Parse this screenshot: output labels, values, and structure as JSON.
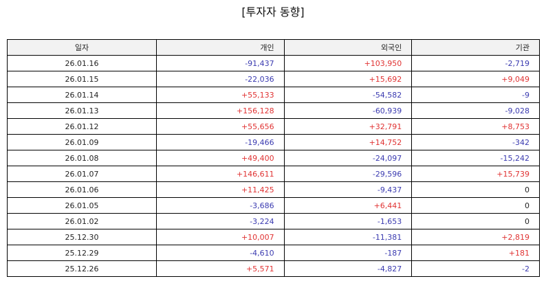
{
  "title": "[투자자 동향]",
  "colors": {
    "positive": "#e03232",
    "negative": "#3a3ab0",
    "neutral": "#222222",
    "header_bg": "#f2f2f2"
  },
  "table": {
    "headers": [
      "일자",
      "개인",
      "외국인",
      "기관"
    ],
    "rows": [
      [
        "26.01.16",
        "-91,437",
        "+103,950",
        "-2,719"
      ],
      [
        "26.01.15",
        "-22,036",
        "+15,692",
        "+9,049"
      ],
      [
        "26.01.14",
        "+55,133",
        "-54,582",
        "-9"
      ],
      [
        "26.01.13",
        "+156,128",
        "-60,939",
        "-9,028"
      ],
      [
        "26.01.12",
        "+55,656",
        "+32,791",
        "+8,753"
      ],
      [
        "26.01.09",
        "-19,466",
        "+14,752",
        "-342"
      ],
      [
        "26.01.08",
        "+49,400",
        "-24,097",
        "-15,242"
      ],
      [
        "26.01.07",
        "+146,611",
        "-29,596",
        "+15,739"
      ],
      [
        "26.01.06",
        "+11,425",
        "-9,437",
        "0"
      ],
      [
        "26.01.05",
        "-3,686",
        "+6,441",
        "0"
      ],
      [
        "26.01.02",
        "-3,224",
        "-1,653",
        "0"
      ],
      [
        "25.12.30",
        "+10,007",
        "-11,381",
        "+2,819"
      ],
      [
        "25.12.29",
        "-4,610",
        "-187",
        "+181"
      ],
      [
        "25.12.26",
        "+5,571",
        "-4,827",
        "-2"
      ]
    ]
  }
}
